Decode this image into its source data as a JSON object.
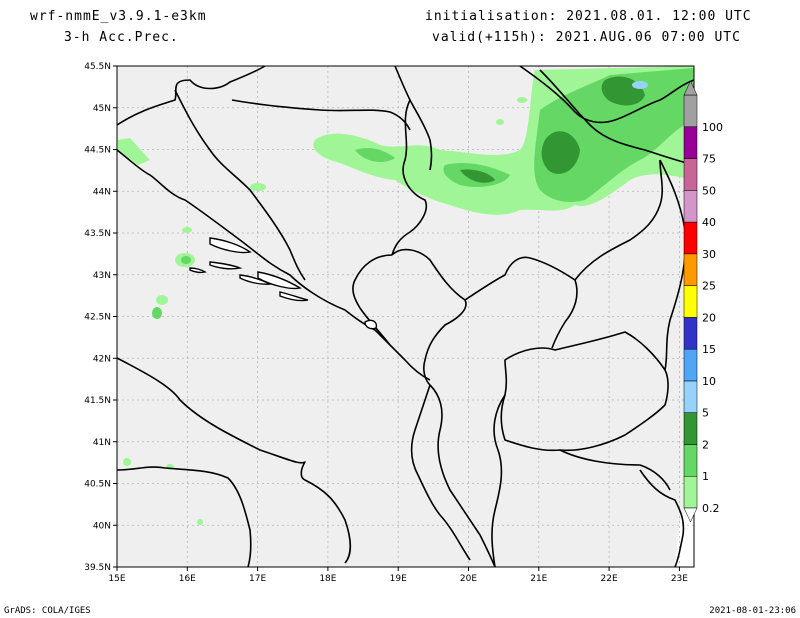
{
  "header": {
    "model": "wrf-nmmE_v3.9.1-e3km",
    "field": "3-h Acc.Prec.",
    "init": "initialisation: 2021.08.01. 12:00 UTC",
    "valid": "valid(+115h): 2021.AUG.06 07:00 UTC"
  },
  "footer": {
    "credit": "GrADS: COLA/IGES",
    "timestamp": "2021-08-01-23:06"
  },
  "axes": {
    "lat_labels": [
      "45.5N",
      "45N",
      "44.5N",
      "44N",
      "43.5N",
      "43N",
      "42.5N",
      "42N",
      "41.5N",
      "41N",
      "40.5N",
      "40N",
      "39.5N"
    ],
    "lon_labels": [
      "15E",
      "16E",
      "17E",
      "18E",
      "19E",
      "20E",
      "21E",
      "22E",
      "23E"
    ]
  },
  "colorbar": {
    "levels": [
      "0.2",
      "1",
      "2",
      "5",
      "10",
      "15",
      "20",
      "25",
      "30",
      "40",
      "50",
      "75",
      "100"
    ],
    "colors": [
      "#a0f596",
      "#64d764",
      "#329632",
      "#96d2fa",
      "#50a5f5",
      "#3232c8",
      "#ffff00",
      "#ff9900",
      "#ff0000",
      "#d296c8",
      "#c86496",
      "#960096",
      "#a0a0a0"
    ]
  },
  "colors": {
    "land": "#efefef",
    "coast": "#000000",
    "grid": "#b4b4b4"
  }
}
